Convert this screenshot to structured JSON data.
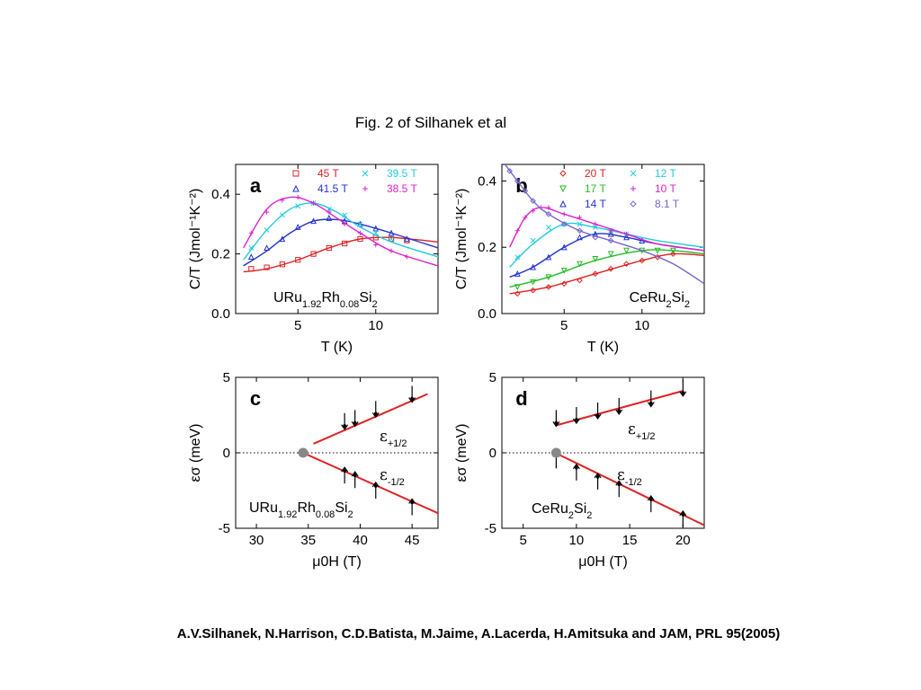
{
  "figure_title": "Fig. 2 of Silhanek et al",
  "citation": "A.V.Silhanek, N.Harrison, C.D.Batista, M.Jaime, A.Lacerda, H.Amitsuka and JAM, PRL 95(2005)",
  "chart_data": [
    {
      "type": "scatter",
      "panel_label": "a",
      "compound": {
        "base": "URu",
        "sub1": "1.92",
        "mid": "Rh",
        "sub2": "0.08",
        "tail": "Si",
        "sub3": "2"
      },
      "xlabel": "T (K)",
      "ylabel": "C/T (Jmol⁻¹K⁻²)",
      "xlim": [
        1,
        14
      ],
      "ylim": [
        0,
        0.5
      ],
      "xticks": [
        "5",
        "10"
      ],
      "yticks": [
        "0.0",
        "0.2",
        "0.4"
      ],
      "legend_placement": "top",
      "series": [
        {
          "name": "45 T",
          "marker": "square",
          "color": "#dd2222",
          "fit": [
            [
              1.5,
              0.14
            ],
            [
              3,
              0.15
            ],
            [
              5,
              0.18
            ],
            [
              7,
              0.22
            ],
            [
              9,
              0.25
            ],
            [
              11,
              0.255
            ],
            [
              14,
              0.24
            ]
          ],
          "points": [
            [
              2,
              0.15
            ],
            [
              3,
              0.155
            ],
            [
              4,
              0.165
            ],
            [
              5,
              0.18
            ],
            [
              6,
              0.2
            ],
            [
              7,
              0.22
            ],
            [
              8,
              0.235
            ],
            [
              9,
              0.25
            ],
            [
              10,
              0.255
            ],
            [
              11,
              0.25
            ],
            [
              12,
              0.245
            ]
          ]
        },
        {
          "name": "41.5 T",
          "marker": "triangle",
          "color": "#2233cc",
          "fit": [
            [
              1.5,
              0.16
            ],
            [
              3,
              0.21
            ],
            [
              4.5,
              0.27
            ],
            [
              6,
              0.31
            ],
            [
              7.5,
              0.315
            ],
            [
              9,
              0.3
            ],
            [
              11,
              0.27
            ],
            [
              14,
              0.22
            ]
          ],
          "points": [
            [
              2,
              0.19
            ],
            [
              3,
              0.22
            ],
            [
              4,
              0.25
            ],
            [
              5,
              0.29
            ],
            [
              6,
              0.31
            ],
            [
              7,
              0.32
            ],
            [
              8,
              0.31
            ],
            [
              9,
              0.3
            ],
            [
              10,
              0.285
            ],
            [
              11,
              0.27
            ],
            [
              12,
              0.25
            ]
          ]
        },
        {
          "name": "39.5 T",
          "marker": "cross",
          "color": "#22ccdd",
          "fit": [
            [
              1.5,
              0.18
            ],
            [
              3,
              0.28
            ],
            [
              4.5,
              0.35
            ],
            [
              6,
              0.37
            ],
            [
              7.5,
              0.34
            ],
            [
              9,
              0.29
            ],
            [
              11,
              0.24
            ],
            [
              14,
              0.19
            ]
          ],
          "points": [
            [
              2,
              0.22
            ],
            [
              3,
              0.28
            ],
            [
              4,
              0.33
            ],
            [
              5,
              0.36
            ],
            [
              6,
              0.37
            ],
            [
              7,
              0.35
            ],
            [
              8,
              0.33
            ],
            [
              9,
              0.3
            ],
            [
              10,
              0.27
            ],
            [
              11,
              0.25
            ]
          ]
        },
        {
          "name": "38.5 T",
          "marker": "plus",
          "color": "#dd22cc",
          "fit": [
            [
              1.5,
              0.22
            ],
            [
              3,
              0.35
            ],
            [
              4.5,
              0.39
            ],
            [
              6,
              0.37
            ],
            [
              7.5,
              0.32
            ],
            [
              9,
              0.27
            ],
            [
              11,
              0.21
            ],
            [
              14,
              0.16
            ]
          ],
          "points": [
            [
              2,
              0.27
            ],
            [
              3,
              0.34
            ],
            [
              4,
              0.38
            ],
            [
              5,
              0.39
            ],
            [
              6,
              0.37
            ],
            [
              7,
              0.34
            ],
            [
              8,
              0.3
            ],
            [
              9,
              0.27
            ],
            [
              10,
              0.23
            ],
            [
              11,
              0.21
            ],
            [
              12,
              0.19
            ]
          ]
        }
      ]
    },
    {
      "type": "scatter",
      "panel_label": "b",
      "compound": {
        "base": "CeRu",
        "sub1": "2",
        "mid": "Si",
        "sub2": "2",
        "tail": "",
        "sub3": ""
      },
      "xlabel": "T (K)",
      "ylabel": "C/T (Jmol⁻¹K⁻²)",
      "xlim": [
        1,
        14
      ],
      "ylim": [
        0,
        0.45
      ],
      "xticks": [
        "5",
        "10"
      ],
      "yticks": [
        "0.0",
        "0.2",
        "0.4"
      ],
      "legend_placement": "top-right",
      "series": [
        {
          "name": "20 T",
          "marker": "diamond",
          "color": "#dd2222",
          "fit": [
            [
              1.5,
              0.06
            ],
            [
              4,
              0.08
            ],
            [
              7,
              0.12
            ],
            [
              10,
              0.16
            ],
            [
              12,
              0.18
            ],
            [
              14,
              0.175
            ]
          ],
          "points": [
            [
              2,
              0.06
            ],
            [
              3,
              0.07
            ],
            [
              4,
              0.08
            ],
            [
              5,
              0.09
            ],
            [
              6,
              0.1
            ],
            [
              7,
              0.12
            ],
            [
              8,
              0.135
            ],
            [
              9,
              0.15
            ],
            [
              10,
              0.16
            ],
            [
              11,
              0.17
            ],
            [
              12,
              0.18
            ]
          ]
        },
        {
          "name": "17 T",
          "marker": "triangle-down",
          "color": "#22bb22",
          "fit": [
            [
              1.5,
              0.08
            ],
            [
              4,
              0.11
            ],
            [
              7,
              0.16
            ],
            [
              10,
              0.19
            ],
            [
              12,
              0.19
            ],
            [
              14,
              0.18
            ]
          ],
          "points": [
            [
              2,
              0.08
            ],
            [
              3,
              0.095
            ],
            [
              4,
              0.11
            ],
            [
              5,
              0.13
            ],
            [
              6,
              0.15
            ],
            [
              7,
              0.165
            ],
            [
              8,
              0.18
            ],
            [
              9,
              0.19
            ],
            [
              10,
              0.19
            ],
            [
              11,
              0.19
            ],
            [
              12,
              0.19
            ]
          ]
        },
        {
          "name": "14 T",
          "marker": "triangle",
          "color": "#2233cc",
          "fit": [
            [
              1.5,
              0.11
            ],
            [
              3,
              0.14
            ],
            [
              5,
              0.2
            ],
            [
              7,
              0.24
            ],
            [
              9,
              0.23
            ],
            [
              11,
              0.21
            ],
            [
              14,
              0.19
            ]
          ],
          "points": [
            [
              2,
              0.12
            ],
            [
              3,
              0.14
            ],
            [
              4,
              0.17
            ],
            [
              5,
              0.2
            ],
            [
              6,
              0.23
            ],
            [
              7,
              0.24
            ],
            [
              8,
              0.24
            ],
            [
              9,
              0.23
            ],
            [
              10,
              0.22
            ]
          ]
        },
        {
          "name": "12 T",
          "marker": "cross",
          "color": "#22ccdd",
          "fit": [
            [
              1.5,
              0.14
            ],
            [
              3,
              0.21
            ],
            [
              5,
              0.27
            ],
            [
              7,
              0.26
            ],
            [
              9,
              0.24
            ],
            [
              11,
              0.22
            ],
            [
              14,
              0.2
            ]
          ],
          "points": [
            [
              2,
              0.17
            ],
            [
              3,
              0.22
            ],
            [
              4,
              0.26
            ],
            [
              5,
              0.27
            ],
            [
              6,
              0.27
            ],
            [
              7,
              0.26
            ],
            [
              8,
              0.25
            ],
            [
              9,
              0.24
            ]
          ]
        },
        {
          "name": "10 T",
          "marker": "plus",
          "color": "#dd22cc",
          "fit": [
            [
              1.5,
              0.2
            ],
            [
              2.5,
              0.29
            ],
            [
              3.5,
              0.32
            ],
            [
              5,
              0.3
            ],
            [
              7,
              0.27
            ],
            [
              9,
              0.24
            ],
            [
              11,
              0.21
            ],
            [
              14,
              0.19
            ]
          ],
          "points": [
            [
              2,
              0.25
            ],
            [
              2.5,
              0.29
            ],
            [
              3,
              0.31
            ],
            [
              3.5,
              0.32
            ],
            [
              4,
              0.32
            ],
            [
              5,
              0.3
            ],
            [
              6,
              0.29
            ],
            [
              7,
              0.27
            ],
            [
              8,
              0.25
            ],
            [
              9,
              0.24
            ]
          ]
        },
        {
          "name": "8.1 T",
          "marker": "diamond",
          "color": "#7766cc",
          "fit": [
            [
              1.2,
              0.45
            ],
            [
              2,
              0.4
            ],
            [
              3,
              0.34
            ],
            [
              4,
              0.3
            ],
            [
              6,
              0.25
            ],
            [
              8,
              0.22
            ],
            [
              10,
              0.19
            ],
            [
              12,
              0.15
            ],
            [
              14,
              0.09
            ]
          ],
          "points": [
            [
              1.5,
              0.43
            ],
            [
              2,
              0.4
            ],
            [
              2.5,
              0.37
            ],
            [
              3,
              0.34
            ],
            [
              4,
              0.3
            ],
            [
              5,
              0.27
            ],
            [
              6,
              0.25
            ],
            [
              7,
              0.23
            ],
            [
              8,
              0.22
            ]
          ]
        }
      ]
    },
    {
      "type": "scatter",
      "panel_label": "c",
      "compound": {
        "base": "URu",
        "sub1": "1.92",
        "mid": "Rh",
        "sub2": "0.08",
        "tail": "Si",
        "sub3": "2"
      },
      "xlabel": "μ0H (T)",
      "ylabel": "εσ (meV)",
      "xlim": [
        28,
        47.5
      ],
      "ylim": [
        -5,
        5
      ],
      "xticks": [
        "30",
        "35",
        "40",
        "45"
      ],
      "yticks": [
        "-5",
        "0",
        "5"
      ],
      "zero_line": "dotted",
      "origin_point": [
        34.5,
        0
      ],
      "series": [
        {
          "name": "ε+1/2",
          "label_main": "ε",
          "label_sub": "+1/2",
          "color": "#dd2222",
          "line": [
            [
              35.5,
              0.6
            ],
            [
              46.5,
              3.9
            ]
          ],
          "arrow": "down",
          "points": [
            [
              38.5,
              1.8
            ],
            [
              39.5,
              2.0
            ],
            [
              41.5,
              2.6
            ],
            [
              45,
              3.6
            ]
          ]
        },
        {
          "name": "ε-1/2",
          "label_main": "ε",
          "label_sub": "-1/2",
          "color": "#dd2222",
          "line": [
            [
              34.5,
              0
            ],
            [
              47.5,
              -4.0
            ]
          ],
          "arrow": "up",
          "points": [
            [
              38.5,
              -1.2
            ],
            [
              39.5,
              -1.5
            ],
            [
              41.5,
              -2.2
            ],
            [
              45,
              -3.3
            ]
          ]
        }
      ]
    },
    {
      "type": "scatter",
      "panel_label": "d",
      "compound": {
        "base": "CeRu",
        "sub1": "2",
        "mid": "Si",
        "sub2": "2",
        "tail": "",
        "sub3": ""
      },
      "xlabel": "μ0H (T)",
      "ylabel": "εσ (meV)",
      "xlim": [
        3,
        22
      ],
      "ylim": [
        -5,
        5
      ],
      "xticks": [
        "5",
        "10",
        "15",
        "20"
      ],
      "yticks": [
        "-5",
        "0",
        "5"
      ],
      "zero_line": "dotted",
      "origin_point": [
        8.1,
        0
      ],
      "series": [
        {
          "name": "ε+1/2",
          "label_main": "ε",
          "label_sub": "+1/2",
          "color": "#dd2222",
          "line": [
            [
              8,
              1.8
            ],
            [
              20,
              4.1
            ]
          ],
          "arrow": "down",
          "points": [
            [
              8.1,
              2.0
            ],
            [
              10,
              2.2
            ],
            [
              12,
              2.5
            ],
            [
              14,
              2.8
            ],
            [
              17,
              3.3
            ],
            [
              20,
              4.0
            ]
          ]
        },
        {
          "name": "ε-1/2",
          "label_main": "ε",
          "label_sub": "-1/2",
          "color": "#dd2222",
          "line": [
            [
              8,
              0
            ],
            [
              22,
              -4.8
            ]
          ],
          "arrow": "up",
          "points": [
            [
              8.1,
              -0.2
            ],
            [
              10,
              -1.0
            ],
            [
              12,
              -1.6
            ],
            [
              14,
              -2.1
            ],
            [
              17,
              -3.1
            ],
            [
              20,
              -4.1
            ]
          ]
        }
      ]
    }
  ]
}
